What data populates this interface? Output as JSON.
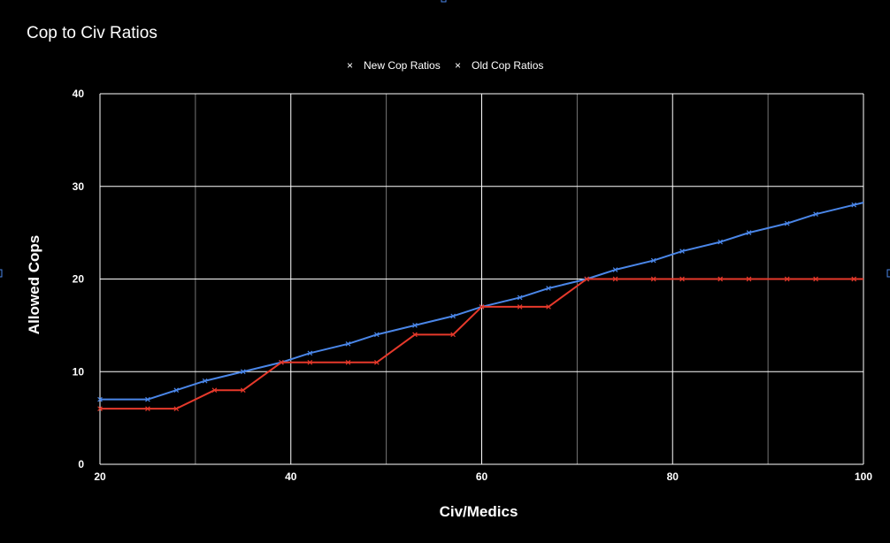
{
  "chart_data": {
    "type": "line",
    "title": "Cop to Civ Ratios",
    "xlabel": "Civ/Medics",
    "ylabel": "Allowed Cops",
    "xlim": [
      20,
      100
    ],
    "ylim": [
      0,
      40
    ],
    "x_ticks": [
      "20",
      "40",
      "60",
      "80",
      "100"
    ],
    "y_ticks": [
      "0",
      "10",
      "20",
      "30",
      "40"
    ],
    "grid": true,
    "legend_position": "top",
    "series": [
      {
        "name": "New Cop Ratios",
        "color": "#4a86e8",
        "marker": "x",
        "x": [
          20,
          25,
          28,
          31,
          35,
          39,
          42,
          46,
          49,
          53,
          57,
          60,
          64,
          67,
          71,
          74,
          78,
          81,
          85,
          88,
          92,
          95,
          99,
          101
        ],
        "y": [
          7,
          7,
          8,
          9,
          10,
          11,
          12,
          13,
          14,
          15,
          16,
          17,
          18,
          19,
          20,
          21,
          22,
          23,
          24,
          25,
          26,
          27,
          28,
          28.5
        ]
      },
      {
        "name": "Old Cop Ratios",
        "color": "#e6392b",
        "marker": "x",
        "x": [
          20,
          25,
          28,
          32,
          35,
          39,
          42,
          46,
          49,
          53,
          57,
          60,
          64,
          67,
          71,
          74,
          78,
          81,
          85,
          88,
          92,
          95,
          99,
          101
        ],
        "y": [
          6,
          6,
          6,
          8,
          8,
          11,
          11,
          11,
          11,
          14,
          14,
          17,
          17,
          17,
          20,
          20,
          20,
          20,
          20,
          20,
          20,
          20,
          20,
          20
        ]
      }
    ]
  }
}
